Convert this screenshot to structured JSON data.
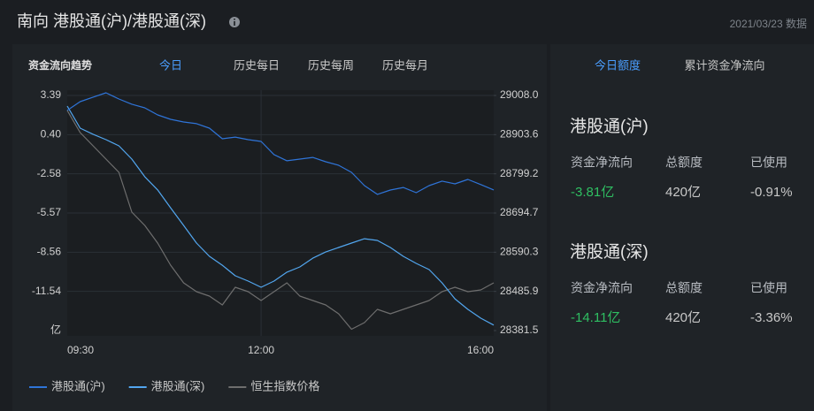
{
  "header": {
    "title": "南向 港股通(沪)/港股通(深)",
    "date": "2021/03/23 数据"
  },
  "left_panel": {
    "title": "资金流向趋势",
    "tabs": [
      "今日",
      "历史每日",
      "历史每周",
      "历史每月"
    ],
    "active_tab": 0
  },
  "chart_data": {
    "type": "line",
    "categories": [
      "09:30",
      null,
      null,
      null,
      null,
      null,
      null,
      null,
      null,
      null,
      null,
      null,
      null,
      null,
      null,
      "12:00",
      null,
      null,
      null,
      null,
      null,
      null,
      null,
      null,
      null,
      null,
      null,
      null,
      null,
      null,
      null,
      null,
      null,
      "16:00"
    ],
    "series": [
      {
        "name": "港股通(沪)",
        "color": "#2f74d8",
        "values": [
          2.25,
          2.92,
          3.26,
          3.59,
          3.12,
          2.72,
          2.45,
          1.91,
          1.57,
          1.37,
          1.24,
          0.9,
          0.09,
          0.22,
          0.02,
          -0.11,
          -1.12,
          -1.59,
          -1.46,
          -1.33,
          -1.66,
          -1.93,
          -2.47,
          -3.48,
          -4.15,
          -3.82,
          -3.62,
          -4.02,
          -3.48,
          -3.14,
          -3.35,
          -3.01,
          -3.4,
          -3.81
        ]
      },
      {
        "name": "港股通(深)",
        "color": "#52a6ef",
        "values": [
          2.58,
          0.9,
          0.43,
          0.02,
          -0.45,
          -1.46,
          -2.8,
          -3.81,
          -5.17,
          -6.51,
          -7.86,
          -8.87,
          -9.55,
          -10.35,
          -10.76,
          -11.23,
          -10.76,
          -10.08,
          -9.68,
          -9.01,
          -8.54,
          -8.2,
          -7.86,
          -7.53,
          -7.66,
          -8.2,
          -8.87,
          -9.41,
          -9.88,
          -10.89,
          -12.11,
          -12.91,
          -13.59,
          -14.11
        ]
      },
      {
        "name": "恒生指数价格",
        "color": "#6e6e6e",
        "axis": "y2",
        "values": [
          28968.0,
          28909.1,
          28873.8,
          28838.4,
          28803.1,
          28697.1,
          28661.8,
          28614.7,
          28555.8,
          28508.7,
          28485.2,
          28473.4,
          28449.8,
          28496.9,
          28485.2,
          28461.6,
          28485.2,
          28508.7,
          28473.4,
          28461.6,
          28449.8,
          28426.2,
          28385.0,
          28402.7,
          28438.0,
          28426.2,
          28438.0,
          28449.8,
          28461.6,
          28485.2,
          28496.9,
          28485.2,
          28489.9,
          28508.7
        ]
      }
    ],
    "ylim": [
      -14.53,
      3.39
    ],
    "yticks": [
      3.39,
      {
        "value": 0.4,
        "label": "0.40"
      },
      -2.58,
      -5.57,
      -8.56,
      -11.54
    ],
    "y_unit": "亿",
    "y2lim": [
      28381.5,
      29008
    ],
    "y2ticks": [
      {
        "value": 29008,
        "label": "29008.0"
      },
      28903.6,
      28799.2,
      28694.7,
      28590.3,
      28485.9,
      28381.5
    ],
    "grid": true,
    "legend": "bottom-left"
  },
  "right_panel": {
    "tabs": [
      "今日额度",
      "累计资金净流向"
    ],
    "active_tab": 0,
    "sections": [
      {
        "title": "港股通(沪)",
        "headers": [
          "资金净流向",
          "总额度",
          "已使用"
        ],
        "values": [
          "-3.81亿",
          "420亿",
          "-0.91%"
        ]
      },
      {
        "title": "港股通(深)",
        "headers": [
          "资金净流向",
          "总额度",
          "已使用"
        ],
        "values": [
          "-14.11亿",
          "420亿",
          "-3.36%"
        ]
      }
    ]
  }
}
